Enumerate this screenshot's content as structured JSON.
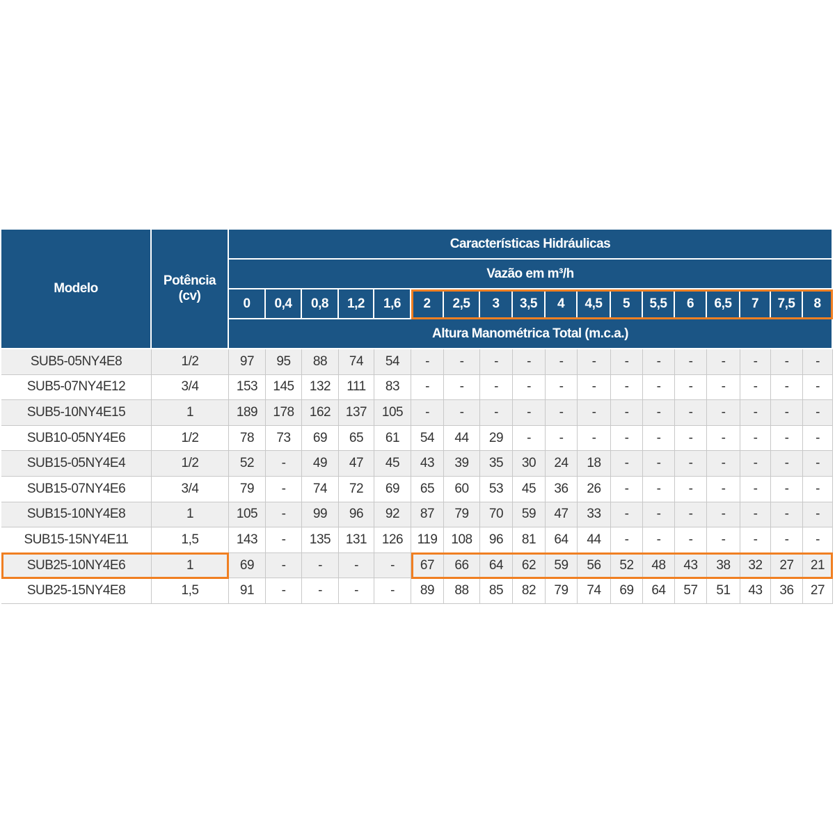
{
  "table": {
    "headers": {
      "model": "Modelo",
      "power": "Potência (cv)",
      "group": "Características Hidráulicas",
      "flow_label": "Vazão em m³/h",
      "flows": [
        "0",
        "0,4",
        "0,8",
        "1,2",
        "1,6",
        "2",
        "2,5",
        "3",
        "3,5",
        "4",
        "4,5",
        "5",
        "5,5",
        "6",
        "6,5",
        "7",
        "7,5",
        "8"
      ],
      "head_label": "Altura Manométrica Total (m.c.a.)"
    },
    "rows": [
      {
        "model": "SUB5-05NY4E8",
        "power": "1/2",
        "values": [
          "97",
          "95",
          "88",
          "74",
          "54",
          "-",
          "-",
          "-",
          "-",
          "-",
          "-",
          "-",
          "-",
          "-",
          "-",
          "-",
          "-",
          "-"
        ]
      },
      {
        "model": "SUB5-07NY4E12",
        "power": "3/4",
        "values": [
          "153",
          "145",
          "132",
          "111",
          "83",
          "-",
          "-",
          "-",
          "-",
          "-",
          "-",
          "-",
          "-",
          "-",
          "-",
          "-",
          "-",
          "-"
        ]
      },
      {
        "model": "SUB5-10NY4E15",
        "power": "1",
        "values": [
          "189",
          "178",
          "162",
          "137",
          "105",
          "-",
          "-",
          "-",
          "-",
          "-",
          "-",
          "-",
          "-",
          "-",
          "-",
          "-",
          "-",
          "-"
        ]
      },
      {
        "model": "SUB10-05NY4E6",
        "power": "1/2",
        "values": [
          "78",
          "73",
          "69",
          "65",
          "61",
          "54",
          "44",
          "29",
          "-",
          "-",
          "-",
          "-",
          "-",
          "-",
          "-",
          "-",
          "-",
          "-"
        ]
      },
      {
        "model": "SUB15-05NY4E4",
        "power": "1/2",
        "values": [
          "52",
          "-",
          "49",
          "47",
          "45",
          "43",
          "39",
          "35",
          "30",
          "24",
          "18",
          "-",
          "-",
          "-",
          "-",
          "-",
          "-",
          "-"
        ]
      },
      {
        "model": "SUB15-07NY4E6",
        "power": "3/4",
        "values": [
          "79",
          "-",
          "74",
          "72",
          "69",
          "65",
          "60",
          "53",
          "45",
          "36",
          "26",
          "-",
          "-",
          "-",
          "-",
          "-",
          "-",
          "-"
        ]
      },
      {
        "model": "SUB15-10NY4E8",
        "power": "1",
        "values": [
          "105",
          "-",
          "99",
          "96",
          "92",
          "87",
          "79",
          "70",
          "59",
          "47",
          "33",
          "-",
          "-",
          "-",
          "-",
          "-",
          "-",
          "-"
        ]
      },
      {
        "model": "SUB15-15NY4E11",
        "power": "1,5",
        "values": [
          "143",
          "-",
          "135",
          "131",
          "126",
          "119",
          "108",
          "96",
          "81",
          "64",
          "44",
          "-",
          "-",
          "-",
          "-",
          "-",
          "-",
          "-"
        ]
      },
      {
        "model": "SUB25-10NY4E6",
        "power": "1",
        "values": [
          "69",
          "-",
          "-",
          "-",
          "-",
          "67",
          "66",
          "64",
          "62",
          "59",
          "56",
          "52",
          "48",
          "43",
          "38",
          "32",
          "27",
          "21"
        ]
      },
      {
        "model": "SUB25-15NY4E8",
        "power": "1,5",
        "values": [
          "91",
          "-",
          "-",
          "-",
          "-",
          "89",
          "88",
          "85",
          "82",
          "79",
          "74",
          "69",
          "64",
          "57",
          "51",
          "43",
          "36",
          "27"
        ]
      }
    ]
  }
}
